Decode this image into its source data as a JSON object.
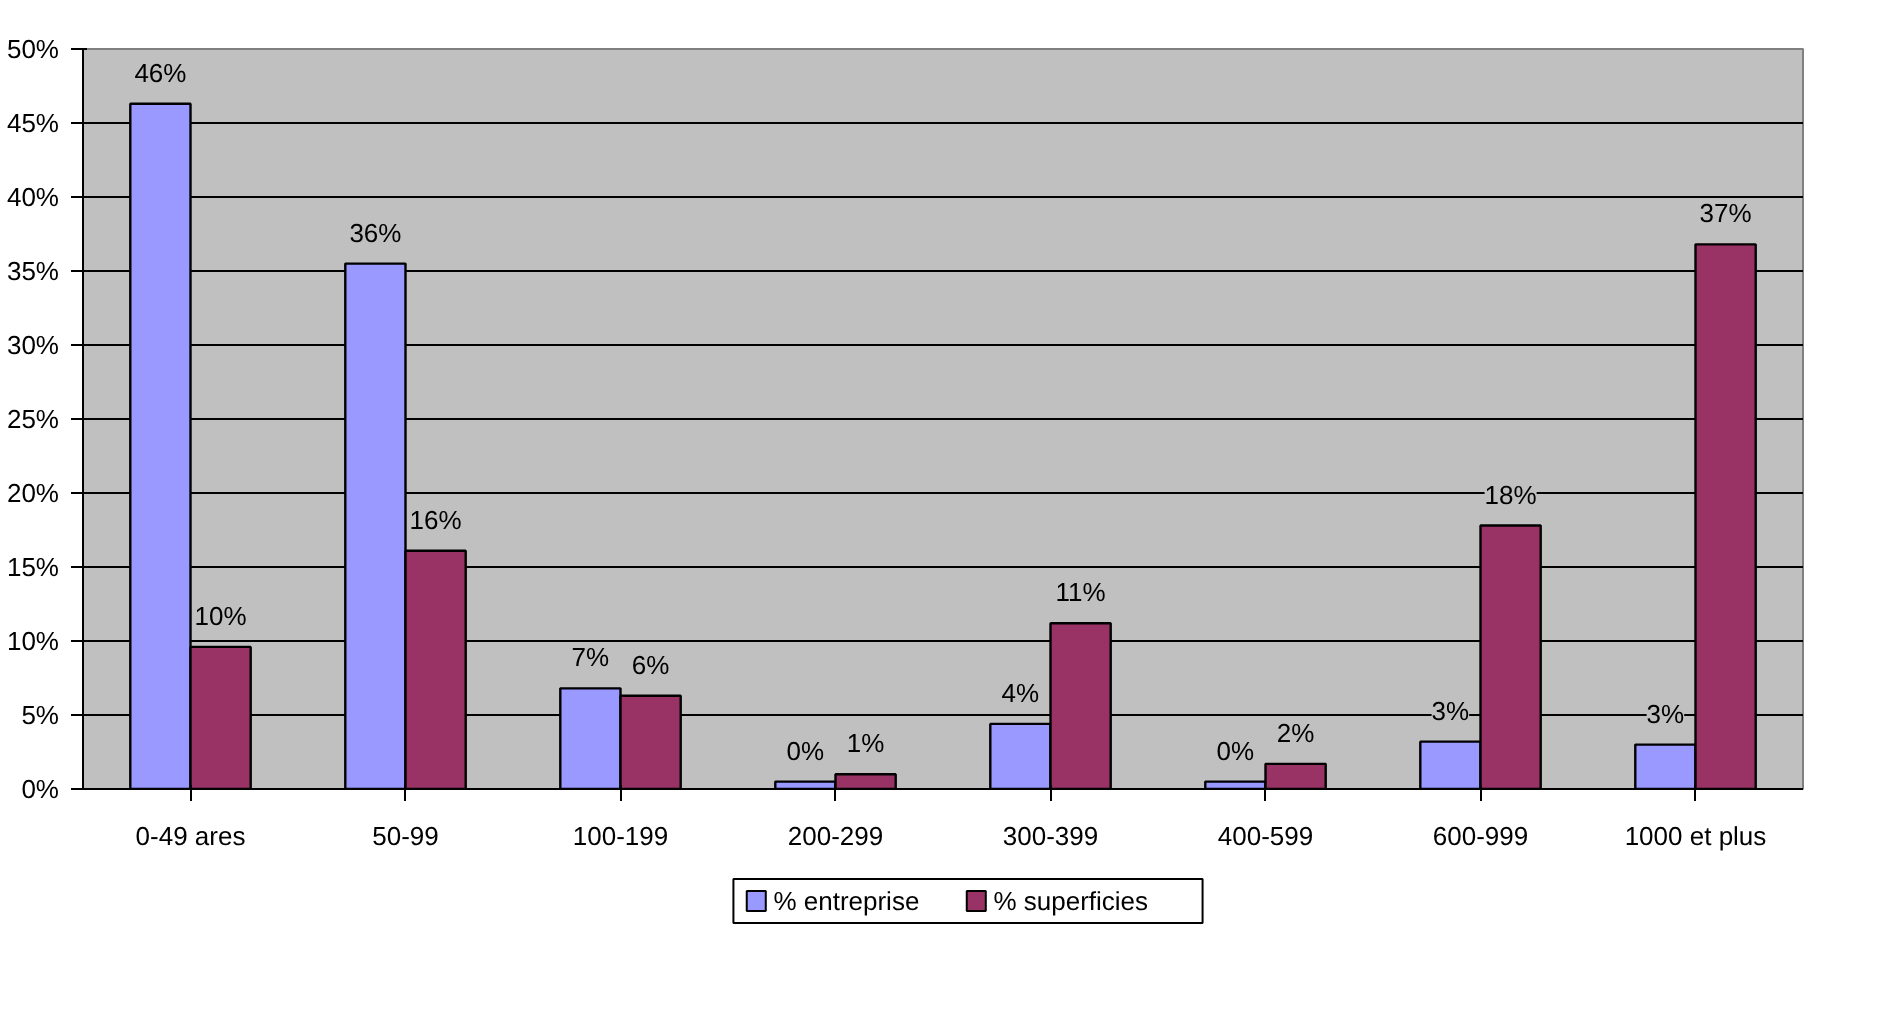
{
  "chart_data": {
    "type": "bar",
    "categories": [
      "0-49 ares",
      "50-99",
      "100-199",
      "200-299",
      "300-399",
      "400-599",
      "600-999",
      "1000 et plus"
    ],
    "series": [
      {
        "name": "% entreprise",
        "color": "#9999ff",
        "values": [
          46.3,
          35.5,
          6.8,
          0.5,
          4.4,
          0.5,
          3.2,
          3.0
        ],
        "value_labels": [
          "46%",
          "36%",
          "7%",
          "0%",
          "4%",
          "0%",
          "3%",
          "3%"
        ]
      },
      {
        "name": "% superficies",
        "color": "#993366",
        "values": [
          9.6,
          16.1,
          6.3,
          1.0,
          11.2,
          1.7,
          17.8,
          36.8
        ],
        "value_labels": [
          "10%",
          "16%",
          "6%",
          "1%",
          "11%",
          "2%",
          "18%",
          "37%"
        ]
      }
    ],
    "ylim": [
      0,
      50
    ],
    "yticks": [
      {
        "value": 0,
        "label": "0%"
      },
      {
        "value": 5,
        "label": "5%"
      },
      {
        "value": 10,
        "label": "10%"
      },
      {
        "value": 15,
        "label": "15%"
      },
      {
        "value": 20,
        "label": "20%"
      },
      {
        "value": 25,
        "label": "25%"
      },
      {
        "value": 30,
        "label": "30%"
      },
      {
        "value": 35,
        "label": "35%"
      },
      {
        "value": 40,
        "label": "40%"
      },
      {
        "value": 45,
        "label": "45%"
      },
      {
        "value": 50,
        "label": "50%"
      }
    ],
    "grid": "y",
    "legend": "bottom"
  }
}
